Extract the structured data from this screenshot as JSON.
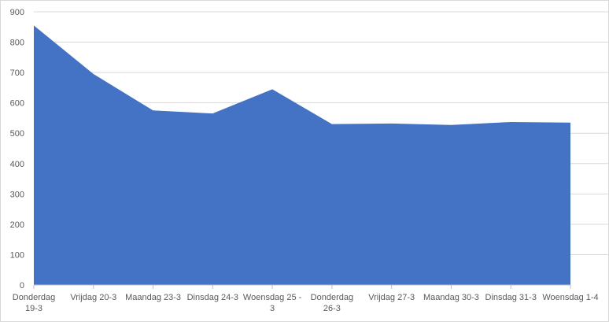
{
  "chart_data": {
    "type": "area",
    "title": "",
    "xlabel": "",
    "ylabel": "",
    "categories": [
      "Donderdag 19-3",
      "Vrijdag 20-3",
      "Maandag 23-3",
      "Dinsdag 24-3",
      "Woensdag 25-3",
      "Donderdag 26-3",
      "Vrijdag 27-3",
      "Maandag 30-3",
      "Dinsdag 31-3",
      "Woensdag 1-4"
    ],
    "category_label_lines": [
      [
        "Donderdag",
        "19-3"
      ],
      [
        "Vrijdag 20-3"
      ],
      [
        "Maandag 23-3"
      ],
      [
        "Dinsdag 24-3"
      ],
      [
        "Woensdag 25 -",
        "3"
      ],
      [
        "Donderdag",
        "26-3"
      ],
      [
        "Vrijdag 27-3"
      ],
      [
        "Maandag 30-3"
      ],
      [
        "Dinsdag 31-3"
      ],
      [
        "Woensdag 1-4"
      ]
    ],
    "series": [
      {
        "values": [
          855,
          695,
          575,
          565,
          645,
          530,
          532,
          527,
          537,
          535
        ]
      }
    ],
    "ylim": [
      0,
      900
    ],
    "yticks": [
      0,
      100,
      200,
      300,
      400,
      500,
      600,
      700,
      800,
      900
    ],
    "grid": true,
    "legend": "none",
    "colors": {
      "area": "#4472c4",
      "grid": "#d9d9d9",
      "axis": "#bfbfbf",
      "text": "#595959"
    }
  }
}
